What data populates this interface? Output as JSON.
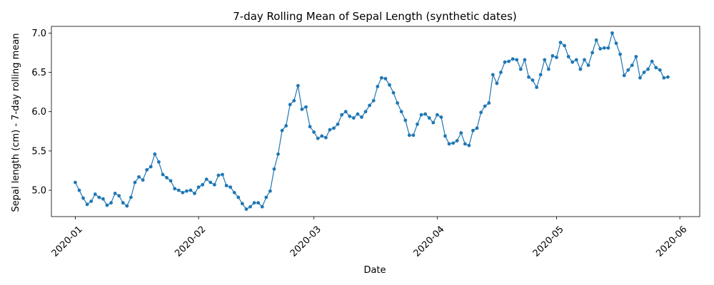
{
  "chart_data": {
    "type": "line",
    "title": "7-day Rolling Mean of Sepal Length (synthetic dates)",
    "xlabel": "Date",
    "ylabel": "Sepal length (cm) - 7-day rolling mean",
    "x_start": "2020-01-01",
    "x_step_days": 1,
    "xlim": [
      "2019-12-26",
      "2020-06-06"
    ],
    "ylim": [
      4.665,
      7.085
    ],
    "x_ticks": [
      {
        "date": "2020-01-01",
        "label": "2020-01"
      },
      {
        "date": "2020-02-01",
        "label": "2020-02"
      },
      {
        "date": "2020-03-01",
        "label": "2020-03"
      },
      {
        "date": "2020-04-01",
        "label": "2020-04"
      },
      {
        "date": "2020-05-01",
        "label": "2020-05"
      },
      {
        "date": "2020-06-01",
        "label": "2020-06"
      }
    ],
    "y_ticks": [
      "5.0",
      "5.5",
      "6.0",
      "6.5",
      "7.0"
    ],
    "grid": false,
    "series": [
      {
        "name": "",
        "color": "#1f77b4",
        "values": [
          5.1,
          5.0,
          4.9,
          4.82,
          4.86,
          4.95,
          4.91,
          4.89,
          4.81,
          4.84,
          4.96,
          4.93,
          4.84,
          4.8,
          4.91,
          5.1,
          5.17,
          5.13,
          5.26,
          5.3,
          5.46,
          5.36,
          5.2,
          5.16,
          5.12,
          5.02,
          5.0,
          4.97,
          4.99,
          5.0,
          4.96,
          5.04,
          5.07,
          5.14,
          5.1,
          5.07,
          5.19,
          5.2,
          5.06,
          5.04,
          4.97,
          4.91,
          4.83,
          4.76,
          4.79,
          4.84,
          4.84,
          4.79,
          4.91,
          4.99,
          5.27,
          5.46,
          5.76,
          5.82,
          6.09,
          6.14,
          6.33,
          6.03,
          6.06,
          5.81,
          5.74,
          5.66,
          5.69,
          5.67,
          5.77,
          5.79,
          5.84,
          5.96,
          6.0,
          5.94,
          5.92,
          5.97,
          5.93,
          6.0,
          6.08,
          6.14,
          6.32,
          6.43,
          6.42,
          6.34,
          6.24,
          6.11,
          6.0,
          5.89,
          5.7,
          5.7,
          5.84,
          5.96,
          5.97,
          5.92,
          5.86,
          5.96,
          5.93,
          5.69,
          5.59,
          5.6,
          5.63,
          5.73,
          5.59,
          5.57,
          5.76,
          5.79,
          5.99,
          6.07,
          6.11,
          6.47,
          6.36,
          6.5,
          6.63,
          6.64,
          6.67,
          6.66,
          6.54,
          6.66,
          6.44,
          6.4,
          6.31,
          6.47,
          6.66,
          6.54,
          6.71,
          6.69,
          6.88,
          6.84,
          6.7,
          6.63,
          6.66,
          6.54,
          6.66,
          6.59,
          6.75,
          6.91,
          6.8,
          6.81,
          6.81,
          7.0,
          6.87,
          6.73,
          6.46,
          6.53,
          6.59,
          6.7,
          6.43,
          6.5,
          6.54,
          6.64,
          6.56,
          6.53,
          6.43,
          6.44
        ]
      }
    ]
  }
}
